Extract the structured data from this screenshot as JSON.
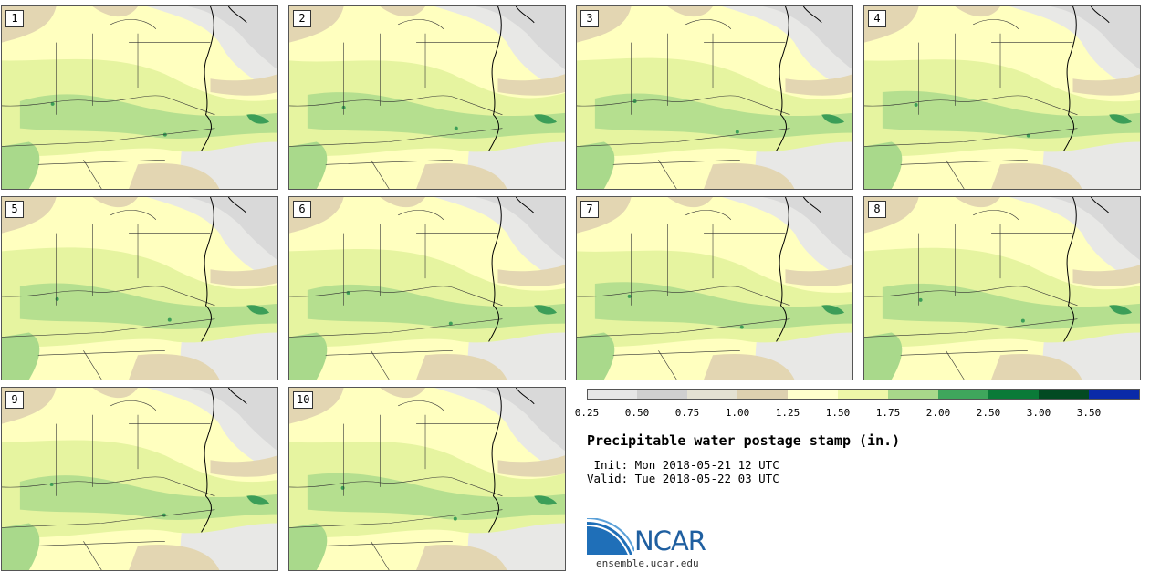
{
  "title": "Precipitable water postage stamp (in.)",
  "init_line": " Init: Mon 2018-05-21 12 UTC",
  "valid_line": "Valid: Tue 2018-05-22 03 UTC",
  "stamps": [
    "1",
    "2",
    "3",
    "4",
    "5",
    "6",
    "7",
    "8",
    "9",
    "10"
  ],
  "colorbar": {
    "ticks": [
      "0.25",
      "0.50",
      "0.75",
      "1.00",
      "1.25",
      "1.50",
      "1.75",
      "2.00",
      "2.50",
      "3.00",
      "3.50"
    ],
    "colors": [
      "#e6e6e6",
      "#cfcfcf",
      "#e4e1d2",
      "#ddd0b0",
      "#ffffcc",
      "#eef7a8",
      "#a8d88a",
      "#3fa65c",
      "#0a7a38",
      "#034a22",
      "#0a2aa8"
    ]
  },
  "logo": {
    "name": "NCAR",
    "url": "ensemble.ucar.edu"
  },
  "map_colors": {
    "bg": "#ffffbf",
    "low_gray": "#d9d9d9",
    "light_gray": "#e8e8e6",
    "tan": "#e3d6b2",
    "light_green": "#e6f4a0",
    "green": "#a9d98b",
    "dark_green": "#3c9e58",
    "line": "#333333"
  }
}
